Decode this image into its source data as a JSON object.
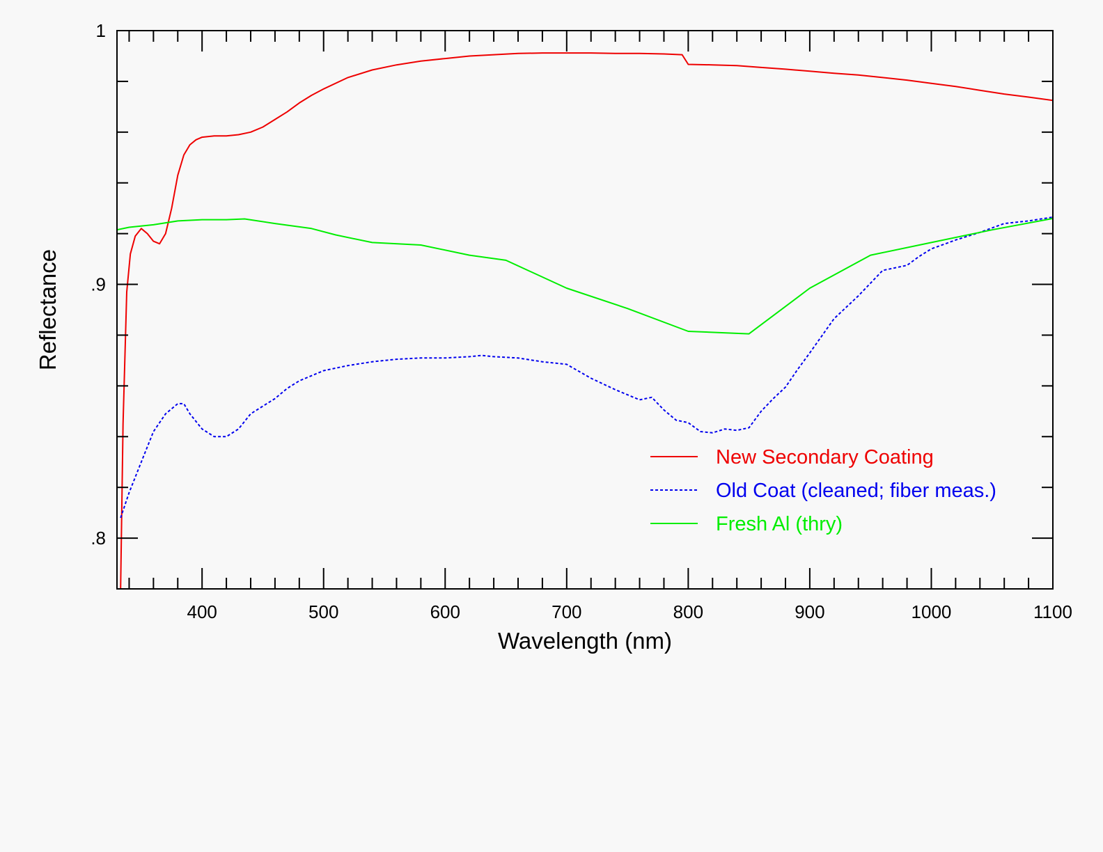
{
  "chart_data": {
    "type": "line",
    "xlabel": "Wavelength (nm)",
    "ylabel": "Reflectance",
    "xlim": [
      330,
      1100
    ],
    "ylim": [
      0.78,
      1.0
    ],
    "x_ticks": [
      400,
      500,
      600,
      700,
      800,
      900,
      1000,
      1100
    ],
    "x_tick_labels": [
      "400",
      "500",
      "600",
      "700",
      "800",
      "900",
      "1000",
      "1100"
    ],
    "x_minor_step": 20,
    "y_ticks": [
      0.8,
      0.9,
      1.0
    ],
    "y_tick_labels": [
      ".8",
      ".9",
      "1"
    ],
    "y_minor_step": 0.02,
    "grid": false,
    "legend_position": "lower-right",
    "series": [
      {
        "name": "New Secondary Coating",
        "color": "#ee0000",
        "style": "solid",
        "x": [
          333,
          335,
          338,
          341,
          345,
          350,
          355,
          360,
          365,
          370,
          375,
          380,
          385,
          390,
          395,
          400,
          410,
          420,
          430,
          440,
          450,
          460,
          470,
          480,
          490,
          500,
          520,
          540,
          560,
          580,
          600,
          620,
          640,
          660,
          680,
          700,
          720,
          740,
          760,
          780,
          795,
          800,
          820,
          840,
          860,
          880,
          900,
          920,
          940,
          960,
          980,
          1000,
          1020,
          1040,
          1060,
          1080,
          1100
        ],
        "y": [
          0.78,
          0.845,
          0.897,
          0.912,
          0.919,
          0.922,
          0.92,
          0.917,
          0.916,
          0.92,
          0.93,
          0.943,
          0.951,
          0.955,
          0.957,
          0.958,
          0.9585,
          0.9585,
          0.959,
          0.96,
          0.962,
          0.965,
          0.968,
          0.9715,
          0.9745,
          0.977,
          0.9815,
          0.9845,
          0.9865,
          0.988,
          0.989,
          0.99,
          0.9905,
          0.991,
          0.9912,
          0.9912,
          0.9912,
          0.991,
          0.991,
          0.9908,
          0.9905,
          0.9867,
          0.9865,
          0.9862,
          0.9855,
          0.9848,
          0.984,
          0.9832,
          0.9825,
          0.9815,
          0.9805,
          0.9792,
          0.978,
          0.9765,
          0.975,
          0.9738,
          0.9725
        ]
      },
      {
        "name": "Old Coat (cleaned; fiber meas.)",
        "color": "#0000ee",
        "style": "dotted",
        "x": [
          333,
          340,
          350,
          360,
          370,
          380,
          385,
          390,
          400,
          410,
          420,
          430,
          440,
          450,
          460,
          470,
          480,
          490,
          500,
          520,
          540,
          560,
          580,
          600,
          620,
          630,
          640,
          660,
          680,
          700,
          720,
          740,
          760,
          770,
          780,
          790,
          800,
          810,
          820,
          830,
          840,
          850,
          860,
          870,
          880,
          890,
          900,
          920,
          940,
          960,
          980,
          990,
          1000,
          1020,
          1040,
          1060,
          1080,
          1100
        ],
        "y": [
          0.808,
          0.818,
          0.83,
          0.842,
          0.849,
          0.853,
          0.853,
          0.849,
          0.843,
          0.84,
          0.84,
          0.843,
          0.849,
          0.852,
          0.855,
          0.859,
          0.862,
          0.864,
          0.866,
          0.868,
          0.8695,
          0.8705,
          0.871,
          0.871,
          0.8715,
          0.872,
          0.8715,
          0.871,
          0.8695,
          0.8685,
          0.863,
          0.8585,
          0.8545,
          0.8555,
          0.8505,
          0.8465,
          0.8455,
          0.842,
          0.8415,
          0.843,
          0.8425,
          0.8435,
          0.85,
          0.855,
          0.8595,
          0.8665,
          0.873,
          0.8865,
          0.8955,
          0.9055,
          0.9075,
          0.911,
          0.914,
          0.9175,
          0.9205,
          0.924,
          0.925,
          0.9265
        ]
      },
      {
        "name": "Fresh Al (thry)",
        "color": "#00ee00",
        "style": "solid",
        "x": [
          330,
          340,
          360,
          380,
          400,
          420,
          435,
          460,
          490,
          510,
          540,
          580,
          620,
          650,
          700,
          750,
          800,
          850,
          900,
          950,
          1000,
          1050,
          1100
        ],
        "y": [
          0.9215,
          0.9225,
          0.9235,
          0.925,
          0.9255,
          0.9255,
          0.9258,
          0.924,
          0.922,
          0.9195,
          0.9165,
          0.9155,
          0.9115,
          0.9095,
          0.8985,
          0.8905,
          0.8815,
          0.8805,
          0.8985,
          0.9115,
          0.9165,
          0.9215,
          0.926
        ]
      }
    ]
  }
}
